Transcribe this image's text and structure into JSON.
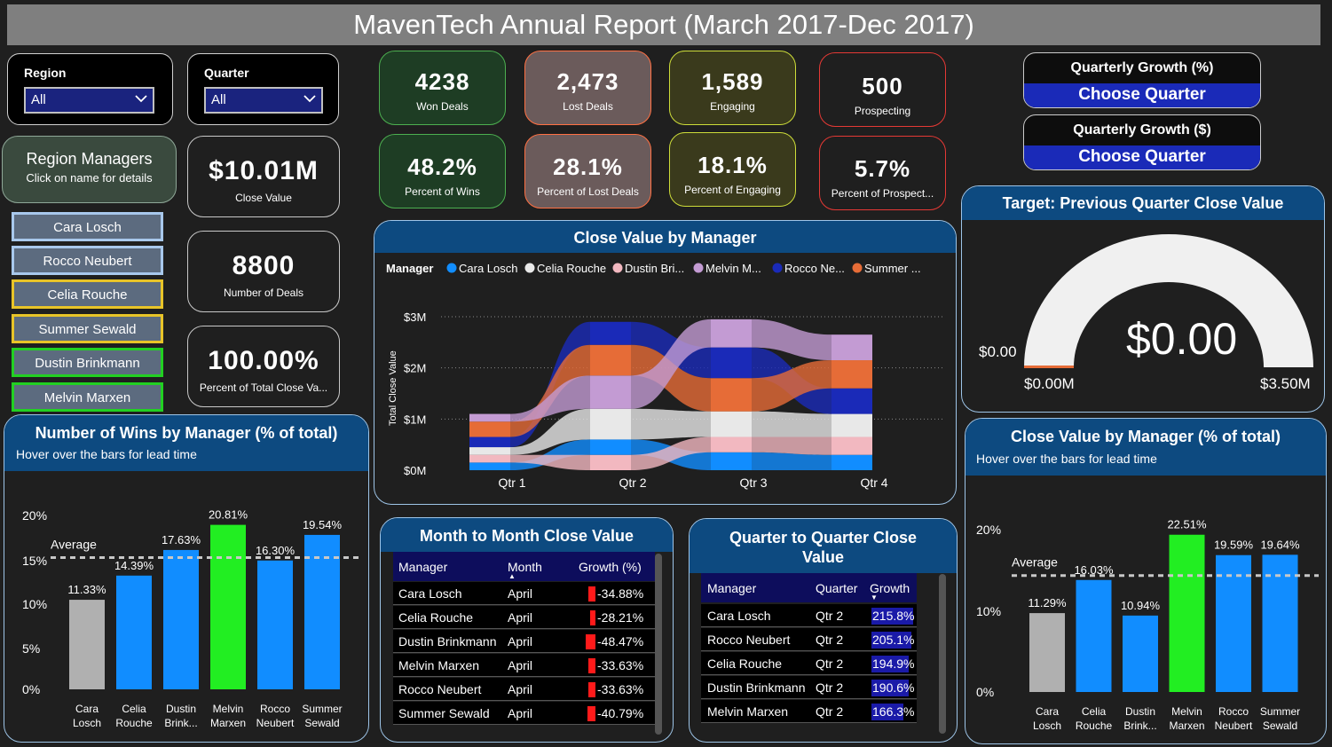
{
  "title": "MavenTech Annual Report (March 2017-Dec 2017)",
  "slicers": {
    "region": {
      "label": "Region",
      "value": "All"
    },
    "quarter": {
      "label": "Quarter",
      "value": "All"
    }
  },
  "region_managers": {
    "title": "Region Managers",
    "subtitle": "Click on name for details",
    "buttons": [
      {
        "label": "Cara Losch",
        "border": "#a8c8ec"
      },
      {
        "label": "Rocco Neubert",
        "border": "#a8c8ec"
      },
      {
        "label": "Celia Rouche",
        "border": "#e8c428"
      },
      {
        "label": "Summer Sewald",
        "border": "#e8c428"
      },
      {
        "label": "Dustin Brinkmann",
        "border": "#22d022"
      },
      {
        "label": "Melvin Marxen",
        "border": "#22d022"
      }
    ]
  },
  "cards": {
    "close_value": {
      "value": "$10.01M",
      "label": "Close Value"
    },
    "num_deals": {
      "value": "8800",
      "label": "Number of Deals"
    },
    "pct_total": {
      "value": "100.00%",
      "label": "Percent of Total Close Va..."
    }
  },
  "kpis": {
    "won": {
      "value": "4238",
      "label": "Won Deals"
    },
    "lost": {
      "value": "2,473",
      "label": "Lost Deals"
    },
    "engaging": {
      "value": "1,589",
      "label": "Engaging"
    },
    "prospecting": {
      "value": "500",
      "label": "Prospecting"
    },
    "pct_wins": {
      "value": "48.2%",
      "label": "Percent of Wins"
    },
    "pct_lost": {
      "value": "28.1%",
      "label": "Percent of Lost Deals"
    },
    "pct_engaging": {
      "value": "18.1%",
      "label": "Percent of Engaging"
    },
    "pct_prospect": {
      "value": "5.7%",
      "label": "Percent of Prospect..."
    }
  },
  "growth": {
    "pct": {
      "title": "Quarterly Growth (%)",
      "cta": "Choose Quarter"
    },
    "dollar": {
      "title": "Quarterly Growth ($)",
      "cta": "Choose Quarter"
    }
  },
  "gauge": {
    "title": "Target: Previous Quarter Close Value",
    "value": "$0.00",
    "target_label": "$0.00",
    "min_label": "$0.00M",
    "max_label": "$3.50M"
  },
  "chart_data": [
    {
      "type": "bar",
      "title": "Number of Wins by Manager (% of total)",
      "subtitle": "Hover over the bars for lead time",
      "categories": [
        "Cara Losch",
        "Celia Rouche",
        "Dustin Brink...",
        "Melvin Marxen",
        "Rocco Neubert",
        "Summer Sewald"
      ],
      "category_lines": [
        [
          "Cara",
          "Losch"
        ],
        [
          "Celia",
          "Rouche"
        ],
        [
          "Dustin",
          "Brink..."
        ],
        [
          "Melvin",
          "Marxen"
        ],
        [
          "Rocco",
          "Neubert"
        ],
        [
          "Summer",
          "Sewald"
        ]
      ],
      "values": [
        11.33,
        14.39,
        17.63,
        20.81,
        16.3,
        19.54
      ],
      "labels": [
        "11.33%",
        "14.39%",
        "17.63%",
        "20.81%",
        "16.30%",
        "19.54%"
      ],
      "colors": [
        "#b0b0b0",
        "#118dff",
        "#118dff",
        "#22ee22",
        "#118dff",
        "#118dff"
      ],
      "average_label": "Average",
      "average": 16.67,
      "yticks": [
        "0%",
        "5%",
        "10%",
        "15%",
        "20%"
      ],
      "ylim": [
        0,
        22
      ]
    },
    {
      "type": "bar",
      "title": "Close Value by Manager (% of total)",
      "subtitle": "Hover over the bars for lead time",
      "categories": [
        "Cara Losch",
        "Celia Rouche",
        "Dustin Brink...",
        "Melvin Marxen",
        "Rocco Neubert",
        "Summer Sewald"
      ],
      "category_lines": [
        [
          "Cara",
          "Losch"
        ],
        [
          "Celia",
          "Rouche"
        ],
        [
          "Dustin",
          "Brink..."
        ],
        [
          "Melvin",
          "Marxen"
        ],
        [
          "Rocco",
          "Neubert"
        ],
        [
          "Summer",
          "Sewald"
        ]
      ],
      "values": [
        11.29,
        16.03,
        10.94,
        22.51,
        19.59,
        19.64
      ],
      "labels": [
        "11.29%",
        "16.03%",
        "10.94%",
        "22.51%",
        "19.59%",
        "19.64%"
      ],
      "colors": [
        "#b0b0b0",
        "#118dff",
        "#118dff",
        "#22ee22",
        "#118dff",
        "#118dff"
      ],
      "average_label": "Average",
      "average": 16.67,
      "yticks": [
        "0%",
        "10%",
        "20%"
      ],
      "ylim": [
        0,
        24
      ]
    },
    {
      "type": "area",
      "title": "Close Value by Manager",
      "legend_title": "Manager",
      "legend": [
        {
          "name": "Cara Losch",
          "color": "#118dff"
        },
        {
          "name": "Celia Rouche",
          "color": "#e8e8e8"
        },
        {
          "name": "Dustin Bri...",
          "color": "#f2b8c0"
        },
        {
          "name": "Melvin M...",
          "color": "#c39bd3"
        },
        {
          "name": "Rocco Ne...",
          "color": "#1a2ab8"
        },
        {
          "name": "Summer ...",
          "color": "#e66c37"
        }
      ],
      "x": [
        "Qtr 1",
        "Qtr 2",
        "Qtr 3",
        "Qtr 4"
      ],
      "ylabel": "Total Close Value",
      "yticks": [
        "$0M",
        "$1M",
        "$2M",
        "$3M"
      ],
      "ylim": [
        0,
        3.1
      ],
      "series": [
        {
          "color": "#118dff",
          "values": [
            0.15,
            0.3,
            0.35,
            0.3
          ]
        },
        {
          "color": "#f2b8c0",
          "values": [
            0.15,
            0.3,
            0.3,
            0.35
          ]
        },
        {
          "color": "#e8e8e8",
          "values": [
            0.15,
            0.6,
            0.5,
            0.45
          ]
        },
        {
          "color": "#1a2ab8",
          "values": [
            0.2,
            0.45,
            0.6,
            0.5
          ]
        },
        {
          "color": "#e66c37",
          "values": [
            0.3,
            0.6,
            0.65,
            0.55
          ]
        },
        {
          "color": "#c39bd3",
          "values": [
            0.15,
            0.65,
            0.55,
            0.5
          ]
        }
      ],
      "stacks": [
        [
          "#118dff",
          "#f2b8c0",
          "#e8e8e8",
          "#1a2ab8",
          "#e66c37",
          "#c39bd3"
        ],
        [
          "#f2b8c0",
          "#118dff",
          "#e8e8e8",
          "#c39bd3",
          "#e66c37",
          "#1a2ab8"
        ],
        [
          "#118dff",
          "#f2b8c0",
          "#e8e8e8",
          "#e66c37",
          "#1a2ab8",
          "#c39bd3"
        ],
        [
          "#118dff",
          "#f2b8c0",
          "#e8e8e8",
          "#1a2ab8",
          "#e66c37",
          "#c39bd3"
        ]
      ]
    }
  ],
  "month_table": {
    "title": "Month to Month Close Value",
    "headers": [
      "Manager",
      "Month",
      "Growth (%)"
    ],
    "rows": [
      {
        "manager": "Cara Losch",
        "month": "April",
        "growth": "-34.88%",
        "pct": 34.88
      },
      {
        "manager": "Celia Rouche",
        "month": "April",
        "growth": "-28.21%",
        "pct": 28.21
      },
      {
        "manager": "Dustin Brinkmann",
        "month": "April",
        "growth": "-48.47%",
        "pct": 48.47
      },
      {
        "manager": "Melvin Marxen",
        "month": "April",
        "growth": "-33.63%",
        "pct": 33.63
      },
      {
        "manager": "Rocco Neubert",
        "month": "April",
        "growth": "-33.63%",
        "pct": 33.63
      },
      {
        "manager": "Summer Sewald",
        "month": "April",
        "growth": "-40.79%",
        "pct": 40.79
      }
    ]
  },
  "quarter_table": {
    "title": "Quarter to Quarter Close Value",
    "headers": [
      "Manager",
      "Quarter",
      "Growth"
    ],
    "rows": [
      {
        "manager": "Cara Losch",
        "quarter": "Qtr 2",
        "growth": "215.8%",
        "pct": 215.8
      },
      {
        "manager": "Rocco Neubert",
        "quarter": "Qtr 2",
        "growth": "205.1%",
        "pct": 205.1
      },
      {
        "manager": "Celia Rouche",
        "quarter": "Qtr 2",
        "growth": "194.9%",
        "pct": 194.9
      },
      {
        "manager": "Dustin Brinkmann",
        "quarter": "Qtr 2",
        "growth": "190.6%",
        "pct": 190.6
      },
      {
        "manager": "Melvin Marxen",
        "quarter": "Qtr 2",
        "growth": "166.3%",
        "pct": 166.3
      }
    ]
  }
}
